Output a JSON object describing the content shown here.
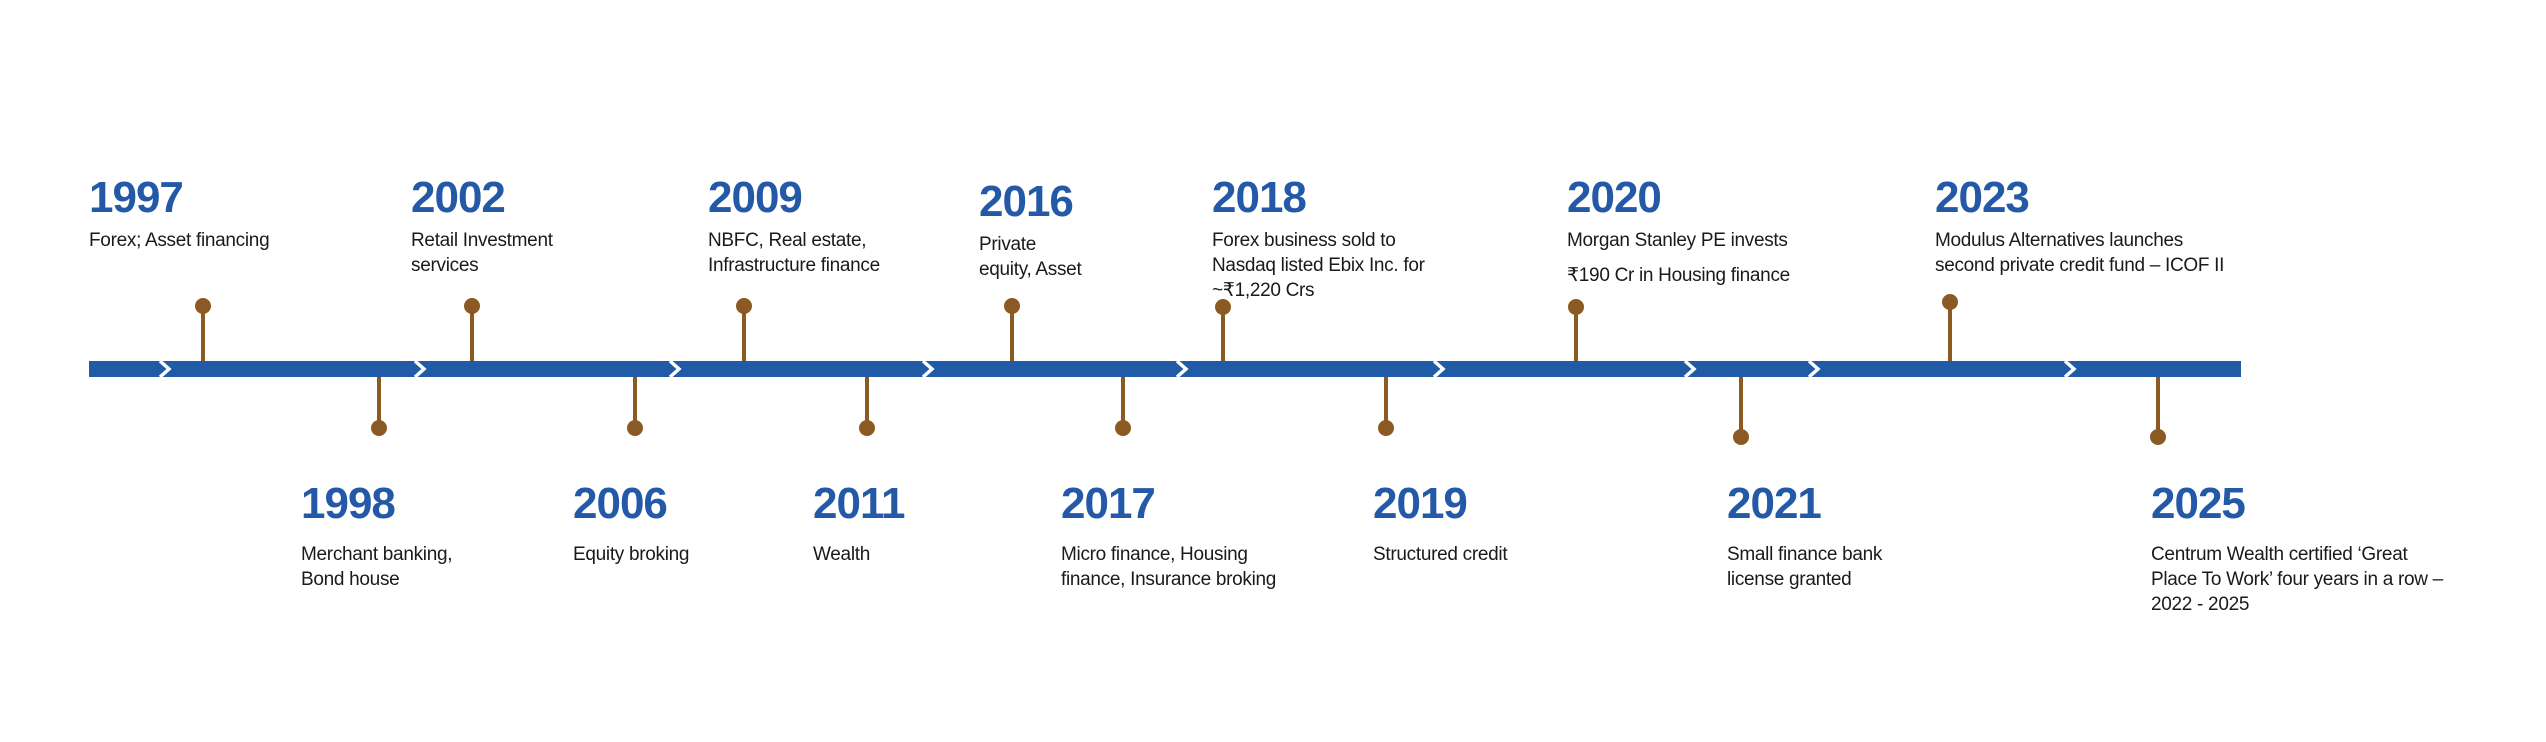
{
  "colors": {
    "bar": "#215ba8",
    "pin": "#8b5a23",
    "year": "#2459a8",
    "text": "#1a1a1a",
    "chevron": "#ffffff"
  },
  "events": [
    {
      "year": "1997",
      "side": "above",
      "lines": [
        "Forex; Asset financing"
      ]
    },
    {
      "year": "1998",
      "side": "below",
      "lines": [
        "Merchant banking,",
        "Bond house"
      ]
    },
    {
      "year": "2002",
      "side": "above",
      "lines": [
        "Retail Investment",
        "services"
      ]
    },
    {
      "year": "2006",
      "side": "below",
      "lines": [
        "Equity broking"
      ]
    },
    {
      "year": "2009",
      "side": "above",
      "lines": [
        "NBFC, Real estate,",
        "Infrastructure finance"
      ]
    },
    {
      "year": "2011",
      "side": "below",
      "lines": [
        "Wealth"
      ]
    },
    {
      "year": "2016",
      "side": "above",
      "lines": [
        "Private",
        "equity, Asset"
      ]
    },
    {
      "year": "2017",
      "side": "below",
      "lines": [
        "Micro finance, Housing",
        "finance, Insurance broking"
      ]
    },
    {
      "year": "2018",
      "side": "above",
      "lines": [
        "Forex business sold to",
        "Nasdaq listed Ebix Inc. for",
        "~₹1,220 Crs"
      ]
    },
    {
      "year": "2019",
      "side": "below",
      "lines": [
        "Structured credit"
      ]
    },
    {
      "year": "2020",
      "side": "above",
      "lines": [
        "Morgan Stanley PE invests",
        "₹190 Cr in Housing finance"
      ]
    },
    {
      "year": "2021",
      "side": "below",
      "lines": [
        "Small finance bank",
        "license granted"
      ]
    },
    {
      "year": "2023",
      "side": "above",
      "lines": [
        "Modulus Alternatives launches",
        "second private credit fund – ICOF II"
      ]
    },
    {
      "year": "2025",
      "side": "below",
      "lines": [
        "Centrum Wealth certified ‘Great",
        "Place To Work’ four years in a row –",
        "2022 - 2025"
      ]
    }
  ]
}
